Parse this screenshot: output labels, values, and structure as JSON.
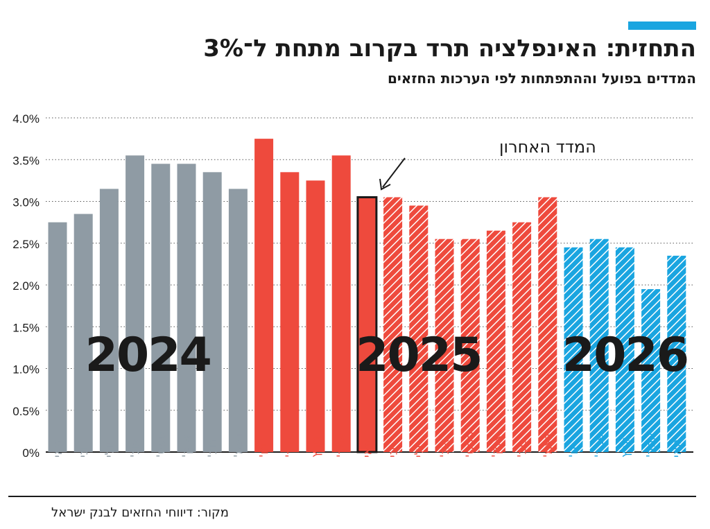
{
  "header": {
    "title": "התחזית: האינפלציה תרד בקרוב מתחת ל־3%",
    "subtitle": "המדדים בפועל וההתפתחות לפי הערכות החזאים"
  },
  "source": "מקור: דיווחי החזאים לבנק ישראל",
  "colors": {
    "accent": "#1aa5e0",
    "gray": "#8f9ba4",
    "red": "#ee4a3d",
    "blue": "#1aa5e0",
    "text": "#1a1a1a"
  },
  "chart_data": {
    "type": "bar",
    "ylim": [
      0,
      4.0
    ],
    "y_ticks": [
      "0%",
      "0.5%",
      "1.0%",
      "1.5%",
      "2.0%",
      "2.5%",
      "3.0%",
      "3.5%",
      "4.0%"
    ],
    "y_tick_values": [
      0,
      0.5,
      1.0,
      1.5,
      2.0,
      2.5,
      3.0,
      3.5,
      4.0
    ],
    "grid": "horizontal dotted",
    "categories": [
      "מאי",
      "יוני",
      "יולי",
      "אוג'",
      "ספט'",
      "אוק'",
      "נוב'",
      "דצמ'",
      "ינו'",
      "פבר'",
      "מרץ",
      "אפר'",
      "מאי",
      "יוני",
      "יולי",
      "אוג'",
      "ספט'",
      "אוק'",
      "נוב'",
      "דצמ'",
      "ינו'",
      "פבר'",
      "מרץ",
      "אפר'",
      "מאי"
    ],
    "values": [
      2.75,
      2.85,
      3.15,
      3.55,
      3.45,
      3.45,
      3.35,
      3.15,
      3.75,
      3.35,
      3.25,
      3.55,
      3.05,
      3.05,
      2.95,
      2.55,
      2.55,
      2.65,
      2.75,
      3.05,
      2.45,
      2.55,
      2.45,
      1.95,
      2.35
    ],
    "bar_styles": [
      "gray-solid",
      "gray-solid",
      "gray-solid",
      "gray-solid",
      "gray-solid",
      "gray-solid",
      "gray-solid",
      "gray-solid",
      "red-solid",
      "red-solid",
      "red-solid",
      "red-solid",
      "red-outlined",
      "red-hatched",
      "red-hatched",
      "red-hatched",
      "red-hatched",
      "red-hatched",
      "red-hatched",
      "red-hatched",
      "blue-hatched",
      "blue-hatched",
      "blue-hatched",
      "blue-hatched",
      "blue-hatched"
    ],
    "year_labels": [
      {
        "text": "2024",
        "start": 0,
        "end": 7
      },
      {
        "text": "2025",
        "start": 12,
        "end": 16
      },
      {
        "text": "2026",
        "start": 20,
        "end": 24
      }
    ],
    "annotation": {
      "text": "המדד האחרון",
      "index": 12
    }
  }
}
